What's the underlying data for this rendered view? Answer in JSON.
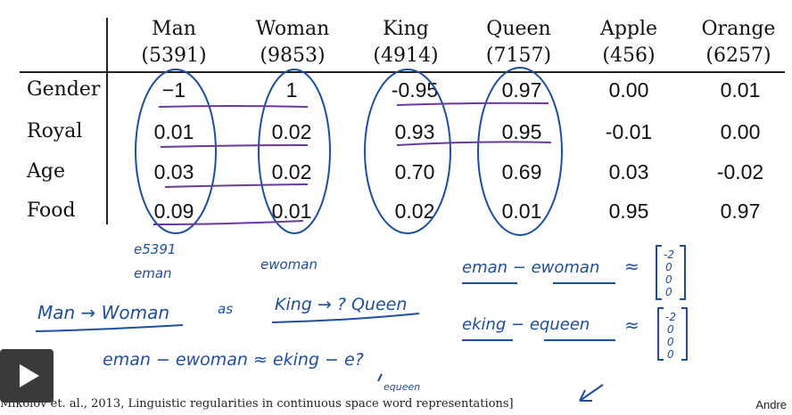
{
  "table": {
    "columns": [
      {
        "name": "Man",
        "count": "(5391)"
      },
      {
        "name": "Woman",
        "count": "(9853)"
      },
      {
        "name": "King",
        "count": "(4914)"
      },
      {
        "name": "Queen",
        "count": "(7157)"
      },
      {
        "name": "Apple",
        "count": "(456)"
      },
      {
        "name": "Orange",
        "count": "(6257)"
      }
    ],
    "rows": [
      {
        "label": "Gender",
        "values": [
          "−1",
          "1",
          "-0.95",
          "0.97",
          "0.00",
          "0.01"
        ]
      },
      {
        "label": "Royal",
        "values": [
          "0.01",
          "0.02",
          "0.93",
          "0.95",
          "-0.01",
          "0.00"
        ]
      },
      {
        "label": "Age",
        "values": [
          "0.03",
          "0.02",
          "0.70",
          "0.69",
          "0.03",
          "-0.02"
        ]
      },
      {
        "label": "Food",
        "values": [
          "0.09",
          "0.01",
          "0.02",
          "0.01",
          "0.95",
          "0.97"
        ]
      }
    ]
  },
  "handwriting": {
    "e5391": "e5391",
    "eman": "eman",
    "ewoman": "ewoman",
    "analogy_left": "Man → Woman",
    "as": "as",
    "analogy_right": "King → ? Queen",
    "eq1_left": "eman − ewoman",
    "eq2_left": "eking − equeen",
    "approx": "≈",
    "vec1": [
      "-2",
      "0",
      "0",
      "0"
    ],
    "vec2": [
      "-2",
      "0",
      "0",
      "0"
    ],
    "eq3": "eman − ewoman ≈ eking − e?",
    "equeen_note": "equeen"
  },
  "citation": "Mikolov et. al., 2013, Linguistic regularities in continuous space word representations]",
  "author": "Andre",
  "play_icon": "play-icon",
  "colors": {
    "ink_blue": "#1d4f9e",
    "ink_purple": "#6a3a9a"
  }
}
